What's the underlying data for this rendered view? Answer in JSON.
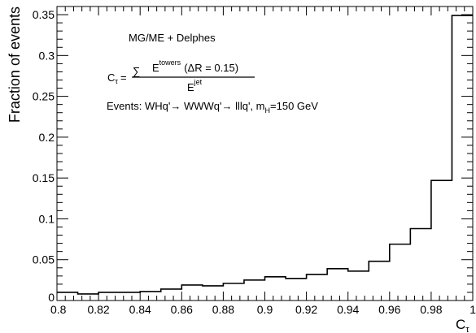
{
  "chart_data": {
    "type": "histogram",
    "title": "",
    "xlabel": "C",
    "xlabel_subscript": "τ",
    "ylabel": "Fraction of events",
    "xlim": [
      0.8,
      1.0
    ],
    "ylim": [
      0,
      0.36
    ],
    "bin_width": 0.01,
    "bin_edges": [
      0.8,
      0.81,
      0.82,
      0.83,
      0.84,
      0.85,
      0.86,
      0.87,
      0.88,
      0.89,
      0.9,
      0.91,
      0.92,
      0.93,
      0.94,
      0.95,
      0.96,
      0.97,
      0.98,
      0.99,
      1.0
    ],
    "values": [
      0.01,
      0.008,
      0.01,
      0.01,
      0.011,
      0.014,
      0.019,
      0.018,
      0.021,
      0.025,
      0.029,
      0.027,
      0.032,
      0.039,
      0.036,
      0.048,
      0.069,
      0.088,
      0.147,
      0.349
    ],
    "x_ticks": [
      "0.8",
      "0.82",
      "0.84",
      "0.86",
      "0.88",
      "0.9",
      "0.92",
      "0.94",
      "0.96",
      "0.98",
      "1"
    ],
    "y_ticks": [
      "0",
      "0.05",
      "0.1",
      "0.15",
      "0.2",
      "0.25",
      "0.3",
      "0.35"
    ],
    "grid": false,
    "annotations": {
      "generator": "MG/ME + Delphes",
      "formula_lhs": "C",
      "formula_lhs_sub": "τ",
      "formula_equals": "=",
      "formula_sum": "∑",
      "formula_num_E": "E",
      "formula_num_sup": "towers",
      "formula_num_rest": "(ΔR = 0.15)",
      "formula_den_E": "E",
      "formula_den_sup": "jet",
      "events_text": "Events: WHq'→ WWWq'→ lllq', m",
      "events_sub": "H",
      "events_tail": "=150 GeV"
    }
  }
}
